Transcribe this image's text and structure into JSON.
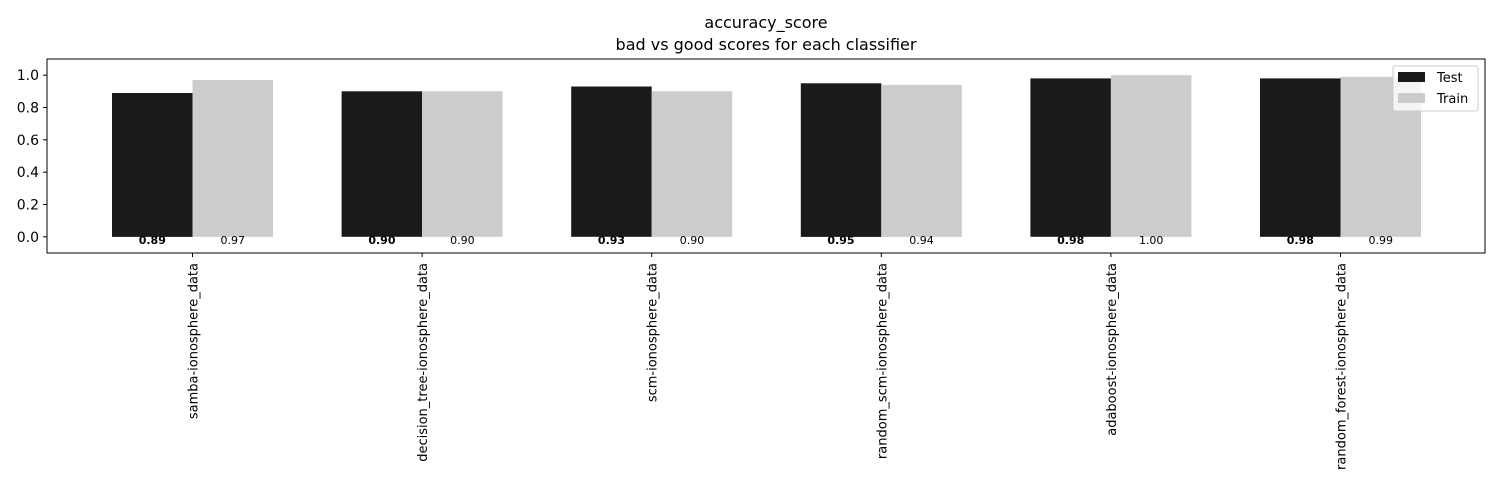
{
  "chart_data": {
    "type": "bar",
    "title": "accuracy_score",
    "subtitle": "bad vs good scores for each classifier",
    "categories": [
      "samba-ionosphere_data",
      "decision_tree-ionosphere_data",
      "scm-ionosphere_data",
      "random_scm-ionosphere_data",
      "adaboost-ionosphere_data",
      "random_forest-ionosphere_data"
    ],
    "series": [
      {
        "name": "Test",
        "color": "#1a1a1a",
        "values": [
          0.89,
          0.9,
          0.93,
          0.95,
          0.98,
          0.98
        ],
        "labels": [
          "0.89",
          "0.90",
          "0.93",
          "0.95",
          "0.98",
          "0.98"
        ],
        "label_weight": "bold"
      },
      {
        "name": "Train",
        "color": "#cccccc",
        "values": [
          0.97,
          0.9,
          0.9,
          0.94,
          1.0,
          0.99
        ],
        "labels": [
          "0.97",
          "0.90",
          "0.90",
          "0.94",
          "1.00",
          "0.99"
        ],
        "label_weight": "normal"
      }
    ],
    "ylim": [
      -0.1,
      1.1
    ],
    "yticks": [
      0.0,
      0.2,
      0.4,
      0.6,
      0.8,
      1.0
    ],
    "ytick_labels": [
      "0.0",
      "0.2",
      "0.4",
      "0.6",
      "0.8",
      "1.0"
    ],
    "xlabel": "",
    "ylabel": "",
    "grid": false,
    "legend_position": "top-right"
  }
}
